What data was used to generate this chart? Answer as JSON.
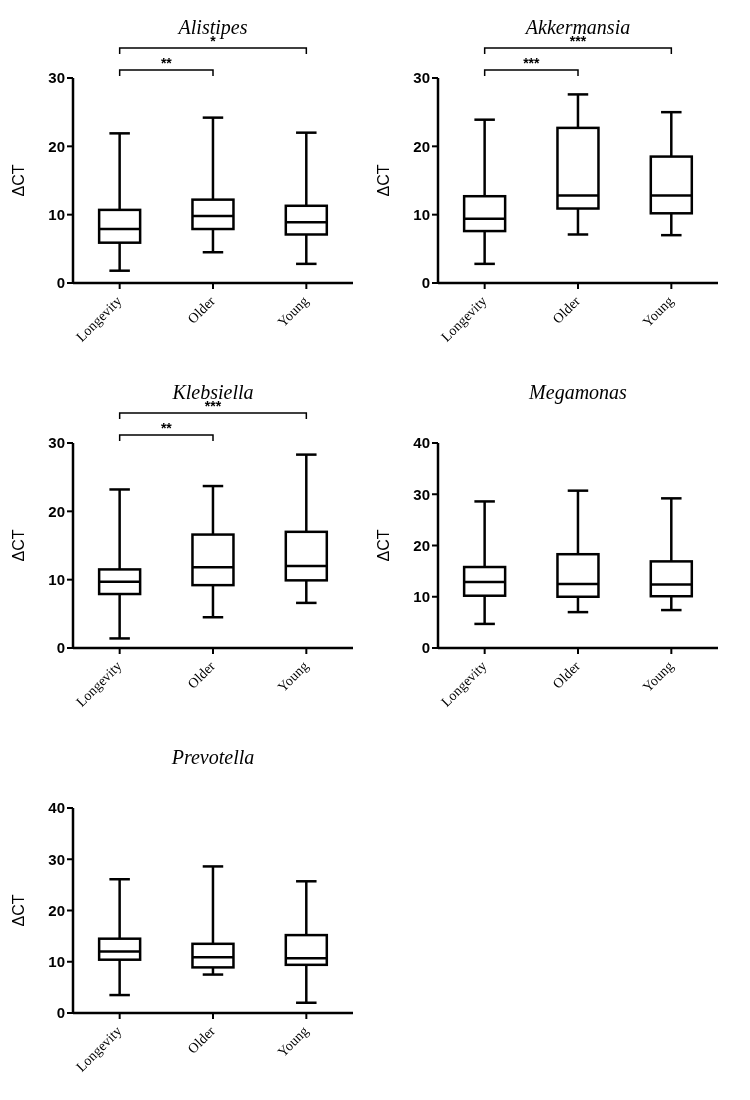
{
  "chart_data": [
    {
      "type": "box",
      "title": "Alistipes",
      "ylabel": "ΔCT",
      "categories": [
        "Longevity",
        "Older",
        "Young"
      ],
      "ylim": [
        0,
        30
      ],
      "yticks": [
        0,
        10,
        20,
        30
      ],
      "annotations": [
        "**",
        "*"
      ],
      "boxes": [
        {
          "low": 1.8,
          "q1": 5.9,
          "median": 7.9,
          "q3": 10.7,
          "high": 21.9
        },
        {
          "low": 4.5,
          "q1": 7.9,
          "median": 9.8,
          "q3": 12.2,
          "high": 24.2
        },
        {
          "low": 2.8,
          "q1": 7.1,
          "median": 8.9,
          "q3": 11.3,
          "high": 22.0
        }
      ]
    },
    {
      "type": "box",
      "title": "Akkermansia",
      "ylabel": "ΔCT",
      "categories": [
        "Longevity",
        "Older",
        "Young"
      ],
      "ylim": [
        0,
        30
      ],
      "yticks": [
        0,
        10,
        20,
        30
      ],
      "annotations": [
        "***",
        "***"
      ],
      "boxes": [
        {
          "low": 2.8,
          "q1": 7.6,
          "median": 9.4,
          "q3": 12.7,
          "high": 23.9
        },
        {
          "low": 7.1,
          "q1": 10.9,
          "median": 12.8,
          "q3": 22.7,
          "high": 27.6
        },
        {
          "low": 7.0,
          "q1": 10.2,
          "median": 12.8,
          "q3": 18.5,
          "high": 25.0
        }
      ]
    },
    {
      "type": "box",
      "title": "Klebsiella",
      "ylabel": "ΔCT",
      "categories": [
        "Longevity",
        "Older",
        "Young"
      ],
      "ylim": [
        0,
        30
      ],
      "yticks": [
        0,
        10,
        20,
        30
      ],
      "annotations": [
        "**",
        "***"
      ],
      "boxes": [
        {
          "low": 1.4,
          "q1": 7.9,
          "median": 9.7,
          "q3": 11.5,
          "high": 23.2
        },
        {
          "low": 4.5,
          "q1": 9.2,
          "median": 11.8,
          "q3": 16.6,
          "high": 23.7
        },
        {
          "low": 6.6,
          "q1": 9.9,
          "median": 12.0,
          "q3": 17.0,
          "high": 28.3
        }
      ]
    },
    {
      "type": "box",
      "title": "Megamonas",
      "ylabel": "ΔCT",
      "categories": [
        "Longevity",
        "Older",
        "Young"
      ],
      "ylim": [
        0,
        40
      ],
      "yticks": [
        0,
        10,
        20,
        30,
        40
      ],
      "boxes": [
        {
          "low": 4.7,
          "q1": 10.2,
          "median": 12.9,
          "q3": 15.8,
          "high": 28.6
        },
        {
          "low": 7.0,
          "q1": 10.0,
          "median": 12.5,
          "q3": 18.3,
          "high": 30.7
        },
        {
          "low": 7.4,
          "q1": 10.1,
          "median": 12.4,
          "q3": 16.9,
          "high": 29.2
        }
      ]
    },
    {
      "type": "box",
      "title": "Prevotella",
      "ylabel": "ΔCT",
      "categories": [
        "Longevity",
        "Older",
        "Young"
      ],
      "ylim": [
        0,
        40
      ],
      "yticks": [
        0,
        10,
        20,
        30,
        40
      ],
      "boxes": [
        {
          "low": 3.5,
          "q1": 10.4,
          "median": 12.0,
          "q3": 14.5,
          "high": 26.1
        },
        {
          "low": 7.5,
          "q1": 8.9,
          "median": 10.9,
          "q3": 13.5,
          "high": 28.6
        },
        {
          "low": 2.0,
          "q1": 9.4,
          "median": 10.7,
          "q3": 15.2,
          "high": 25.7
        }
      ]
    }
  ]
}
